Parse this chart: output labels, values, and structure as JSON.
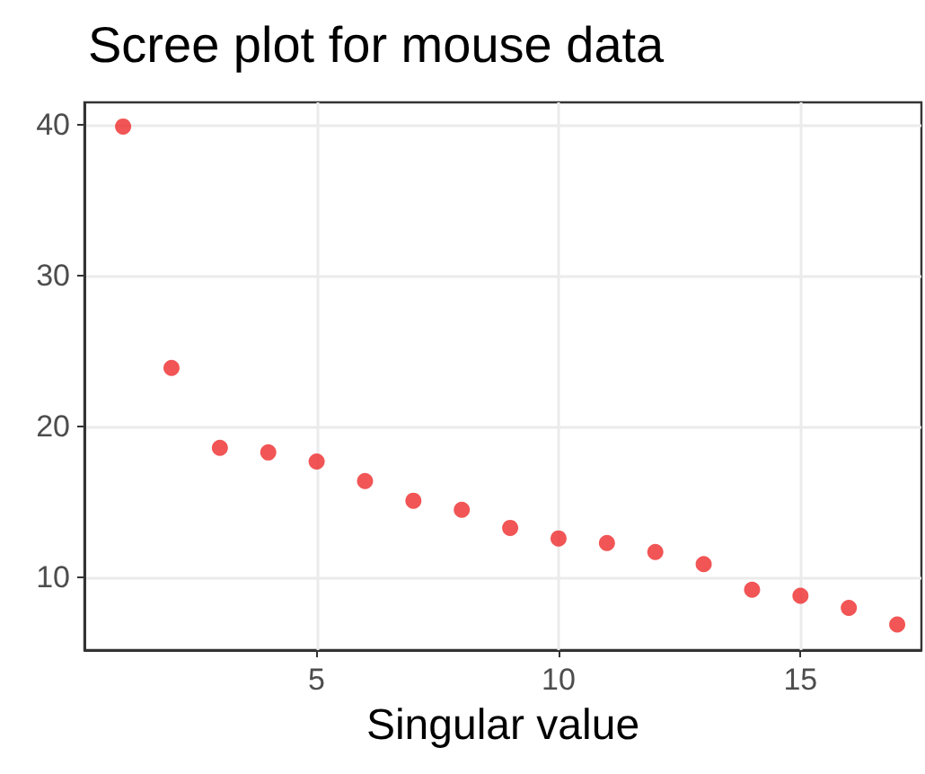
{
  "chart_data": {
    "type": "scatter",
    "title": "Scree plot for mouse data",
    "xlabel": "Singular value",
    "x": [
      1,
      2,
      3,
      4,
      5,
      6,
      7,
      8,
      9,
      10,
      11,
      12,
      13,
      14,
      15,
      16,
      17
    ],
    "series": [
      {
        "color": "#ee2a2a",
        "values": [
          39.9,
          23.9,
          18.6,
          18.3,
          17.7,
          16.4,
          15.1,
          14.5,
          13.3,
          12.6,
          12.3,
          11.7,
          10.9,
          9.2,
          8.8,
          8.0,
          6.9
        ]
      }
    ],
    "xlim": [
      0.2,
      17.5
    ],
    "ylim": [
      5.2,
      41.5
    ],
    "xticks": [
      5,
      10,
      15
    ],
    "yticks": [
      10,
      20,
      30,
      40
    ],
    "grid": true,
    "marker": "circle"
  }
}
